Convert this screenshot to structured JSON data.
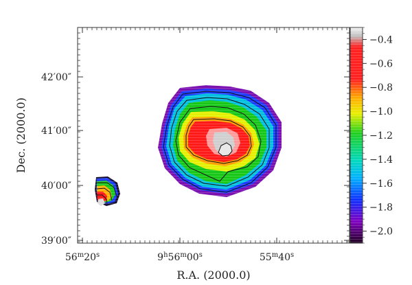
{
  "chart_data": {
    "type": "heatmap",
    "xlabel": "R.A. (2000.0)",
    "ylabel": "Dec. (2000.0)",
    "x_ticks": [
      {
        "value": "56m20s",
        "parts": [
          {
            "t": "56",
            "sup": false
          },
          {
            "t": "m",
            "sup": true
          },
          {
            "t": "20",
            "sup": false
          },
          {
            "t": "s",
            "sup": true
          }
        ]
      },
      {
        "value": "9h56m00s",
        "parts": [
          {
            "t": "9",
            "sup": false
          },
          {
            "t": "h",
            "sup": true
          },
          {
            "t": "56",
            "sup": false
          },
          {
            "t": "m",
            "sup": true
          },
          {
            "t": "00",
            "sup": false
          },
          {
            "t": "s",
            "sup": true
          }
        ]
      },
      {
        "value": "55m40s",
        "parts": [
          {
            "t": "55",
            "sup": false
          },
          {
            "t": "m",
            "sup": true
          },
          {
            "t": "40",
            "sup": false
          },
          {
            "t": "s",
            "sup": true
          }
        ]
      }
    ],
    "y_ticks": [
      "42′00″",
      "41′00″",
      "40′00″",
      "39′00″"
    ],
    "colorbar": {
      "range": [
        -2.1,
        -0.3
      ],
      "ticks": [
        "−0.4",
        "−0.6",
        "−0.8",
        "−1.0",
        "−1.2",
        "−1.4",
        "−1.6",
        "−1.8",
        "−2.0"
      ],
      "tick_values": [
        -0.4,
        -0.6,
        -0.8,
        -1.0,
        -1.2,
        -1.4,
        -1.6,
        -1.8,
        -2.0
      ],
      "colormap": [
        "#ffffff",
        "#c8c8c8",
        "#ff0000",
        "#ff8c00",
        "#ffe800",
        "#00d000",
        "#00c8ff",
        "#1030ff",
        "#8000c0",
        "#1a0020"
      ]
    },
    "main_source": {
      "contour_levels": [
        -1.75,
        -1.5,
        -1.25,
        -1.0,
        -0.6,
        -0.45
      ],
      "peak_value": -0.3
    },
    "secondary_source": {
      "contour_levels": [
        -1.5,
        -1.25,
        -1.0
      ],
      "peak_value": -0.55
    }
  }
}
